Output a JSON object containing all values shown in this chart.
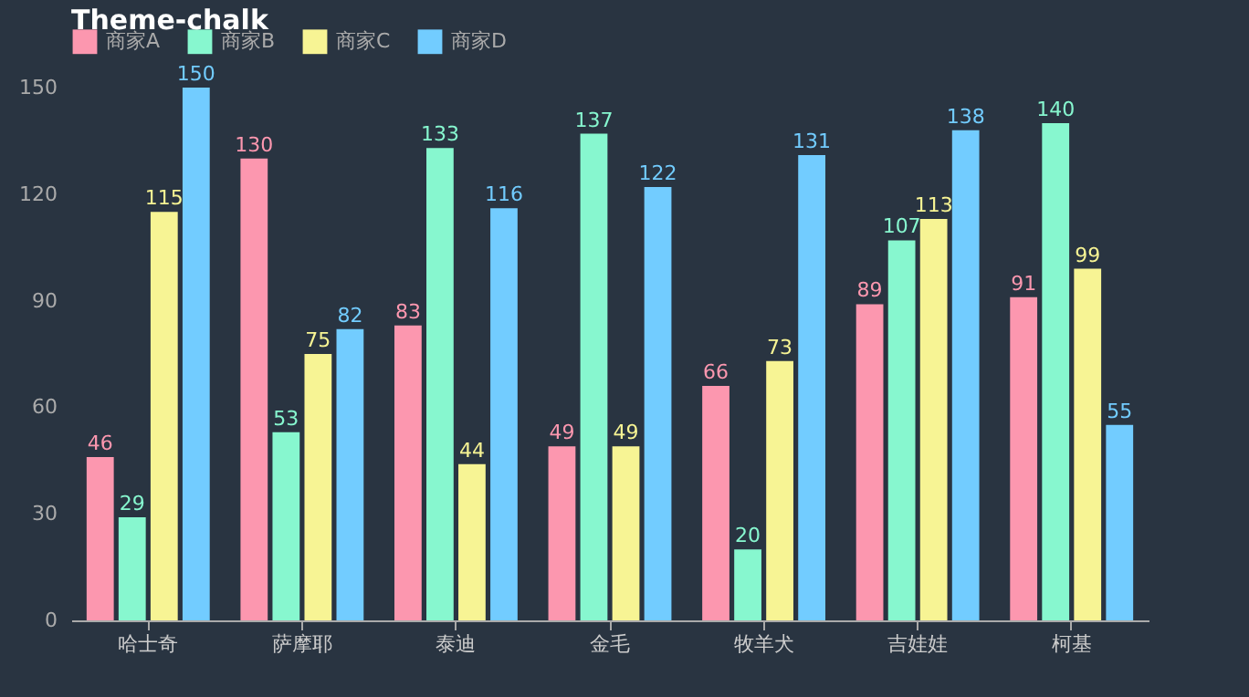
{
  "chart_data": {
    "type": "bar",
    "title": "Theme-chalk",
    "categories": [
      "哈士奇",
      "萨摩耶",
      "泰迪",
      "金毛",
      "牧羊犬",
      "吉娃娃",
      "柯基"
    ],
    "series": [
      {
        "name": "商家A",
        "color": "#fc97af",
        "values": [
          46,
          130,
          83,
          49,
          66,
          89,
          91
        ]
      },
      {
        "name": "商家B",
        "color": "#87f7cf",
        "values": [
          29,
          53,
          133,
          137,
          20,
          107,
          140
        ]
      },
      {
        "name": "商家C",
        "color": "#f7f494",
        "values": [
          115,
          75,
          44,
          49,
          73,
          113,
          99
        ]
      },
      {
        "name": "商家D",
        "color": "#72ccff",
        "values": [
          150,
          82,
          116,
          122,
          131,
          138,
          55
        ]
      }
    ],
    "ylim": [
      0,
      150
    ],
    "yticks": [
      0,
      30,
      60,
      90,
      120,
      150
    ],
    "grid": false,
    "legend": "top",
    "data_labels": true
  }
}
